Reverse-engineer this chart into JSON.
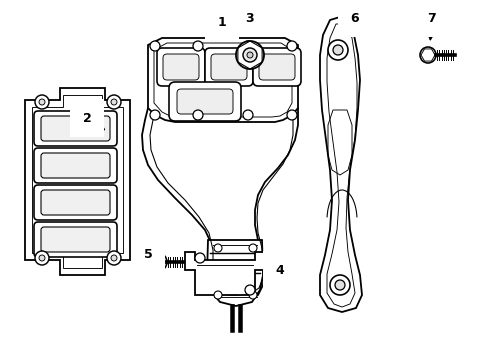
{
  "figsize": [
    4.89,
    3.6
  ],
  "dpi": 100,
  "bg": "#ffffff",
  "lc": "#000000",
  "lw": 1.3
}
